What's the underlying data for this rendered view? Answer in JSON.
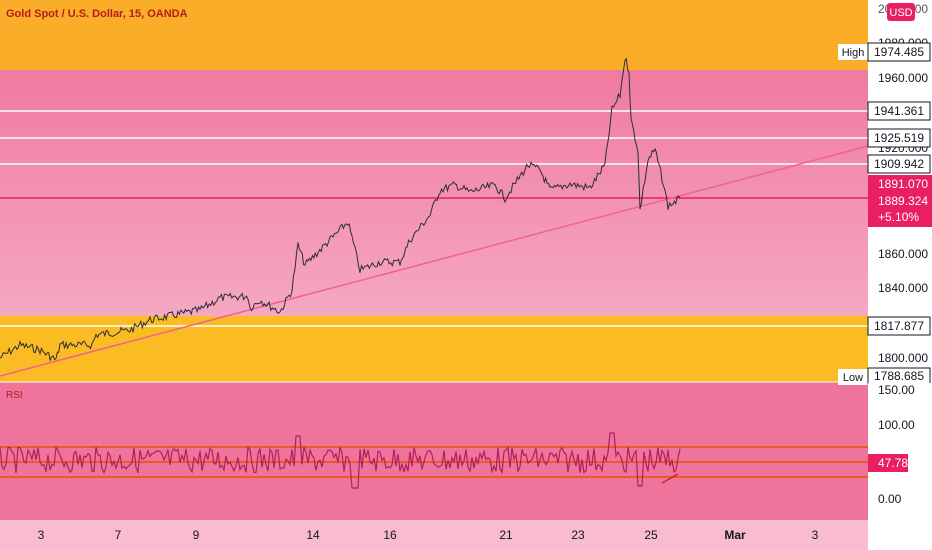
{
  "header": {
    "symbol_title": "Gold Spot / U.S. Dollar, 15, OANDA",
    "currency_button": "USD"
  },
  "colors": {
    "orange_band": "#f9ad28",
    "yellow_band": "#fbbc23",
    "pink_top": "#f07aa0",
    "pink_bottom": "#f5a7c0",
    "rsi_bg": "#ee749b",
    "price_line": "#e91e63",
    "rsi_line": "#b0205a",
    "rsi_band_line": "#e65100",
    "trendline": "#f06292",
    "label_bg_dark": "#e91e63"
  },
  "price_axis": {
    "ticks": [
      "2000.000",
      "1980.000",
      "1960.000",
      "1920.000",
      "1860.000",
      "1840.000",
      "1800.000"
    ],
    "badges": {
      "high_label": "High",
      "high_value": "1974.485",
      "level_1": "1941.361",
      "level_2": "1925.519",
      "level_3": "1909.942",
      "current_1": "1891.070",
      "current_2": "1889.324",
      "change": "+5.10%",
      "level_4": "1817.877",
      "low_label": "Low",
      "low_value": "1788.685"
    }
  },
  "rsi_pane": {
    "label": "RSI",
    "ticks": [
      "150.00",
      "100.00",
      "0.00"
    ],
    "current_value": "47.78"
  },
  "time_axis": {
    "labels": [
      "3",
      "7",
      "9",
      "14",
      "16",
      "21",
      "23",
      "25",
      "Mar",
      "3"
    ]
  },
  "chart_data": {
    "type": "line",
    "title": "Gold Spot / U.S. Dollar, 15, OANDA",
    "x": [
      "3",
      "7",
      "9",
      "14",
      "16",
      "21",
      "23",
      "25"
    ],
    "series": [
      {
        "name": "Gold Spot / U.S. Dollar",
        "values": [
          1806,
          1818,
          1835,
          1870,
          1862,
          1895,
          1900,
          1889.324
        ]
      }
    ],
    "horizontal_levels": [
      1974.485,
      1941.361,
      1925.519,
      1909.942,
      1891.07,
      1817.877,
      1788.685
    ],
    "ylim": [
      1788,
      2000
    ],
    "rsi": {
      "current": 47.78,
      "ylim": [
        0,
        150
      ]
    },
    "grid": false
  }
}
